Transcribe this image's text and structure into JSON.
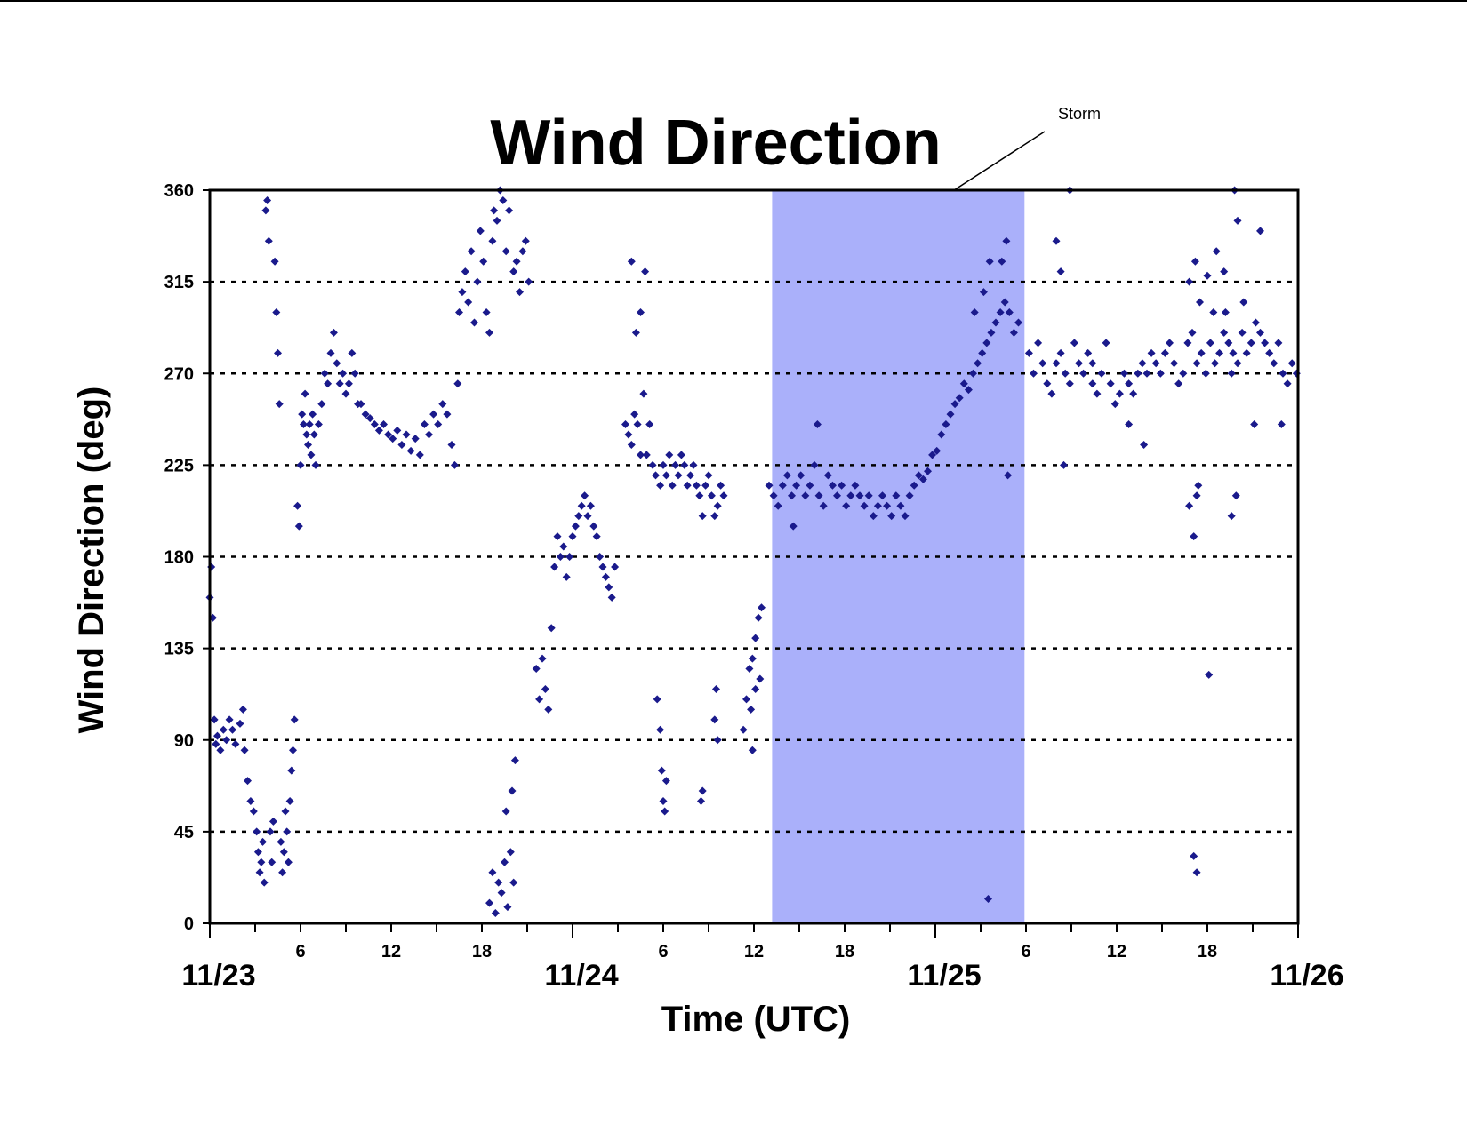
{
  "chart_data": {
    "type": "scatter",
    "title": "Wind Direction",
    "xlabel": "Time (UTC)",
    "ylabel": "Wind Direction (deg)",
    "ylim": [
      0,
      360
    ],
    "y_ticks": [
      0,
      45,
      90,
      135,
      180,
      225,
      270,
      315,
      360
    ],
    "xlim_hours": [
      0,
      72
    ],
    "x_major_ticks": [
      {
        "hour": 0,
        "label": "11/23"
      },
      {
        "hour": 24,
        "label": "11/24"
      },
      {
        "hour": 48,
        "label": "11/25"
      },
      {
        "hour": 72,
        "label": "11/26"
      }
    ],
    "x_minor_ticks": [
      {
        "hour": 6,
        "label": "6"
      },
      {
        "hour": 12,
        "label": "12"
      },
      {
        "hour": 18,
        "label": "18"
      },
      {
        "hour": 30,
        "label": "6"
      },
      {
        "hour": 36,
        "label": "12"
      },
      {
        "hour": 42,
        "label": "18"
      },
      {
        "hour": 54,
        "label": "6"
      },
      {
        "hour": 60,
        "label": "12"
      },
      {
        "hour": 66,
        "label": "18"
      }
    ],
    "grid": "horizontal dotted at each y tick (45–315)",
    "marker": "diamond",
    "color": "#1a1a8c",
    "shaded_region": {
      "x_start_hour": 37.2,
      "x_end_hour": 53.9,
      "color": "#aab0fa",
      "label": "Storm"
    },
    "series_points": [
      [
        0.0,
        160
      ],
      [
        0.1,
        175
      ],
      [
        0.2,
        150
      ],
      [
        0.3,
        100
      ],
      [
        0.4,
        88
      ],
      [
        0.5,
        92
      ],
      [
        0.7,
        85
      ],
      [
        0.9,
        95
      ],
      [
        1.1,
        90
      ],
      [
        1.3,
        100
      ],
      [
        1.5,
        95
      ],
      [
        1.7,
        88
      ],
      [
        2.0,
        98
      ],
      [
        2.2,
        105
      ],
      [
        2.3,
        85
      ],
      [
        2.5,
        70
      ],
      [
        2.7,
        60
      ],
      [
        2.9,
        55
      ],
      [
        3.1,
        45
      ],
      [
        3.2,
        35
      ],
      [
        3.3,
        25
      ],
      [
        3.4,
        30
      ],
      [
        3.5,
        40
      ],
      [
        3.6,
        20
      ],
      [
        3.7,
        350
      ],
      [
        3.8,
        355
      ],
      [
        3.9,
        335
      ],
      [
        4.0,
        45
      ],
      [
        4.1,
        30
      ],
      [
        4.2,
        50
      ],
      [
        4.3,
        325
      ],
      [
        4.4,
        300
      ],
      [
        4.5,
        280
      ],
      [
        4.6,
        255
      ],
      [
        4.7,
        40
      ],
      [
        4.8,
        25
      ],
      [
        4.9,
        35
      ],
      [
        5.0,
        55
      ],
      [
        5.1,
        45
      ],
      [
        5.2,
        30
      ],
      [
        5.3,
        60
      ],
      [
        5.4,
        75
      ],
      [
        5.5,
        85
      ],
      [
        5.6,
        100
      ],
      [
        5.8,
        205
      ],
      [
        5.9,
        195
      ],
      [
        6.0,
        225
      ],
      [
        6.1,
        250
      ],
      [
        6.2,
        245
      ],
      [
        6.3,
        260
      ],
      [
        6.4,
        240
      ],
      [
        6.5,
        235
      ],
      [
        6.6,
        245
      ],
      [
        6.7,
        230
      ],
      [
        6.8,
        250
      ],
      [
        6.9,
        240
      ],
      [
        7.0,
        225
      ],
      [
        7.2,
        245
      ],
      [
        7.4,
        255
      ],
      [
        7.6,
        270
      ],
      [
        7.8,
        265
      ],
      [
        8.0,
        280
      ],
      [
        8.2,
        290
      ],
      [
        8.4,
        275
      ],
      [
        8.6,
        265
      ],
      [
        8.8,
        270
      ],
      [
        9.0,
        260
      ],
      [
        9.2,
        265
      ],
      [
        9.4,
        280
      ],
      [
        9.6,
        270
      ],
      [
        9.8,
        255
      ],
      [
        10.0,
        255
      ],
      [
        10.3,
        250
      ],
      [
        10.6,
        248
      ],
      [
        10.9,
        245
      ],
      [
        11.2,
        242
      ],
      [
        11.5,
        245
      ],
      [
        11.8,
        240
      ],
      [
        12.1,
        238
      ],
      [
        12.4,
        242
      ],
      [
        12.7,
        235
      ],
      [
        13.0,
        240
      ],
      [
        13.3,
        232
      ],
      [
        13.6,
        238
      ],
      [
        13.9,
        230
      ],
      [
        14.2,
        245
      ],
      [
        14.5,
        240
      ],
      [
        14.8,
        250
      ],
      [
        15.1,
        245
      ],
      [
        15.4,
        255
      ],
      [
        15.7,
        250
      ],
      [
        16.0,
        235
      ],
      [
        16.2,
        225
      ],
      [
        16.4,
        265
      ],
      [
        16.5,
        300
      ],
      [
        16.7,
        310
      ],
      [
        16.9,
        320
      ],
      [
        17.1,
        305
      ],
      [
        17.3,
        330
      ],
      [
        17.5,
        295
      ],
      [
        17.7,
        315
      ],
      [
        17.9,
        340
      ],
      [
        18.1,
        325
      ],
      [
        18.3,
        300
      ],
      [
        18.5,
        290
      ],
      [
        18.7,
        335
      ],
      [
        18.8,
        350
      ],
      [
        19.0,
        345
      ],
      [
        19.2,
        360
      ],
      [
        19.4,
        355
      ],
      [
        19.6,
        330
      ],
      [
        19.8,
        350
      ],
      [
        20.1,
        320
      ],
      [
        20.3,
        325
      ],
      [
        20.5,
        310
      ],
      [
        20.7,
        330
      ],
      [
        20.9,
        335
      ],
      [
        21.1,
        315
      ],
      [
        18.5,
        10
      ],
      [
        18.7,
        25
      ],
      [
        18.9,
        5
      ],
      [
        19.1,
        20
      ],
      [
        19.3,
        15
      ],
      [
        19.5,
        30
      ],
      [
        19.7,
        8
      ],
      [
        19.9,
        35
      ],
      [
        20.1,
        20
      ],
      [
        20.0,
        65
      ],
      [
        20.2,
        80
      ],
      [
        19.6,
        55
      ],
      [
        21.6,
        125
      ],
      [
        21.8,
        110
      ],
      [
        22.0,
        130
      ],
      [
        22.2,
        115
      ],
      [
        22.4,
        105
      ],
      [
        22.6,
        145
      ],
      [
        22.8,
        175
      ],
      [
        23.0,
        190
      ],
      [
        23.2,
        180
      ],
      [
        23.4,
        185
      ],
      [
        23.6,
        170
      ],
      [
        23.8,
        180
      ],
      [
        24.0,
        190
      ],
      [
        24.2,
        195
      ],
      [
        24.4,
        200
      ],
      [
        24.6,
        205
      ],
      [
        24.8,
        210
      ],
      [
        25.0,
        200
      ],
      [
        25.2,
        205
      ],
      [
        25.4,
        195
      ],
      [
        25.6,
        190
      ],
      [
        25.8,
        180
      ],
      [
        26.0,
        175
      ],
      [
        26.2,
        170
      ],
      [
        26.4,
        165
      ],
      [
        26.6,
        160
      ],
      [
        26.8,
        175
      ],
      [
        27.5,
        245
      ],
      [
        27.7,
        240
      ],
      [
        27.9,
        235
      ],
      [
        28.1,
        250
      ],
      [
        28.3,
        245
      ],
      [
        28.5,
        230
      ],
      [
        28.7,
        260
      ],
      [
        28.9,
        230
      ],
      [
        29.1,
        245
      ],
      [
        29.3,
        225
      ],
      [
        29.5,
        220
      ],
      [
        28.2,
        290
      ],
      [
        28.5,
        300
      ],
      [
        28.8,
        320
      ],
      [
        27.9,
        325
      ],
      [
        29.8,
        215
      ],
      [
        30.0,
        225
      ],
      [
        30.2,
        220
      ],
      [
        30.4,
        230
      ],
      [
        30.6,
        215
      ],
      [
        30.8,
        225
      ],
      [
        31.0,
        220
      ],
      [
        31.2,
        230
      ],
      [
        31.4,
        225
      ],
      [
        31.6,
        215
      ],
      [
        31.8,
        220
      ],
      [
        32.0,
        225
      ],
      [
        32.2,
        215
      ],
      [
        32.4,
        210
      ],
      [
        32.6,
        200
      ],
      [
        32.8,
        215
      ],
      [
        33.0,
        220
      ],
      [
        33.2,
        210
      ],
      [
        33.4,
        200
      ],
      [
        33.6,
        205
      ],
      [
        33.8,
        215
      ],
      [
        34.0,
        210
      ],
      [
        29.6,
        110
      ],
      [
        29.8,
        95
      ],
      [
        30.0,
        60
      ],
      [
        30.2,
        70
      ],
      [
        30.1,
        55
      ],
      [
        29.9,
        75
      ],
      [
        32.5,
        60
      ],
      [
        32.6,
        65
      ],
      [
        33.4,
        100
      ],
      [
        33.5,
        115
      ],
      [
        33.6,
        90
      ],
      [
        35.3,
        95
      ],
      [
        35.5,
        110
      ],
      [
        35.7,
        125
      ],
      [
        35.9,
        130
      ],
      [
        36.1,
        140
      ],
      [
        36.3,
        150
      ],
      [
        36.5,
        155
      ],
      [
        36.1,
        115
      ],
      [
        35.8,
        105
      ],
      [
        36.4,
        120
      ],
      [
        35.9,
        85
      ],
      [
        37.0,
        215
      ],
      [
        37.3,
        210
      ],
      [
        37.6,
        205
      ],
      [
        37.9,
        215
      ],
      [
        38.2,
        220
      ],
      [
        38.5,
        210
      ],
      [
        38.8,
        215
      ],
      [
        39.1,
        220
      ],
      [
        39.4,
        210
      ],
      [
        39.7,
        215
      ],
      [
        40.0,
        225
      ],
      [
        40.3,
        210
      ],
      [
        40.6,
        205
      ],
      [
        40.9,
        220
      ],
      [
        41.2,
        215
      ],
      [
        41.5,
        210
      ],
      [
        41.8,
        215
      ],
      [
        42.1,
        205
      ],
      [
        42.4,
        210
      ],
      [
        42.7,
        215
      ],
      [
        43.0,
        210
      ],
      [
        43.3,
        205
      ],
      [
        43.6,
        210
      ],
      [
        43.9,
        200
      ],
      [
        44.2,
        205
      ],
      [
        44.5,
        210
      ],
      [
        44.8,
        205
      ],
      [
        45.1,
        200
      ],
      [
        45.4,
        210
      ],
      [
        45.7,
        205
      ],
      [
        46.0,
        200
      ],
      [
        46.3,
        210
      ],
      [
        46.6,
        215
      ],
      [
        46.9,
        220
      ],
      [
        47.2,
        218
      ],
      [
        47.5,
        222
      ],
      [
        47.8,
        230
      ],
      [
        48.1,
        232
      ],
      [
        48.4,
        240
      ],
      [
        48.7,
        245
      ],
      [
        49.0,
        250
      ],
      [
        49.3,
        255
      ],
      [
        49.6,
        258
      ],
      [
        49.9,
        265
      ],
      [
        50.2,
        262
      ],
      [
        50.5,
        270
      ],
      [
        50.8,
        275
      ],
      [
        51.1,
        280
      ],
      [
        51.4,
        285
      ],
      [
        51.7,
        290
      ],
      [
        52.0,
        295
      ],
      [
        52.3,
        300
      ],
      [
        52.6,
        305
      ],
      [
        52.9,
        300
      ],
      [
        53.2,
        290
      ],
      [
        53.5,
        295
      ],
      [
        50.6,
        300
      ],
      [
        51.2,
        310
      ],
      [
        51.6,
        325
      ],
      [
        52.4,
        325
      ],
      [
        52.7,
        335
      ],
      [
        40.2,
        245
      ],
      [
        38.6,
        195
      ],
      [
        52.8,
        220
      ],
      [
        51.5,
        12
      ],
      [
        54.2,
        280
      ],
      [
        54.5,
        270
      ],
      [
        54.8,
        285
      ],
      [
        55.1,
        275
      ],
      [
        55.4,
        265
      ],
      [
        55.7,
        260
      ],
      [
        56.0,
        275
      ],
      [
        56.3,
        280
      ],
      [
        56.6,
        270
      ],
      [
        56.9,
        265
      ],
      [
        57.2,
        285
      ],
      [
        57.5,
        275
      ],
      [
        57.8,
        270
      ],
      [
        58.1,
        280
      ],
      [
        58.4,
        265
      ],
      [
        58.7,
        260
      ],
      [
        59.0,
        270
      ],
      [
        59.3,
        285
      ],
      [
        59.6,
        265
      ],
      [
        59.9,
        255
      ],
      [
        60.2,
        260
      ],
      [
        60.5,
        270
      ],
      [
        60.8,
        265
      ],
      [
        61.1,
        260
      ],
      [
        61.4,
        270
      ],
      [
        61.7,
        275
      ],
      [
        62.0,
        270
      ],
      [
        62.3,
        280
      ],
      [
        62.6,
        275
      ],
      [
        62.9,
        270
      ],
      [
        63.2,
        280
      ],
      [
        63.5,
        285
      ],
      [
        63.8,
        275
      ],
      [
        64.1,
        265
      ],
      [
        64.4,
        270
      ],
      [
        64.7,
        285
      ],
      [
        65.0,
        290
      ],
      [
        65.3,
        275
      ],
      [
        65.6,
        280
      ],
      [
        65.9,
        270
      ],
      [
        66.2,
        285
      ],
      [
        66.5,
        275
      ],
      [
        66.8,
        280
      ],
      [
        67.1,
        290
      ],
      [
        67.4,
        285
      ],
      [
        67.7,
        280
      ],
      [
        68.0,
        275
      ],
      [
        68.3,
        290
      ],
      [
        68.6,
        280
      ],
      [
        68.9,
        285
      ],
      [
        69.2,
        295
      ],
      [
        69.5,
        290
      ],
      [
        69.8,
        285
      ],
      [
        70.1,
        280
      ],
      [
        70.4,
        275
      ],
      [
        70.7,
        285
      ],
      [
        71.0,
        270
      ],
      [
        71.3,
        265
      ],
      [
        71.6,
        275
      ],
      [
        71.9,
        270
      ],
      [
        56.0,
        335
      ],
      [
        56.3,
        320
      ],
      [
        56.5,
        225
      ],
      [
        56.9,
        360
      ],
      [
        64.8,
        315
      ],
      [
        65.2,
        325
      ],
      [
        65.5,
        305
      ],
      [
        66.0,
        318
      ],
      [
        66.4,
        300
      ],
      [
        66.6,
        330
      ],
      [
        67.1,
        320
      ],
      [
        67.2,
        300
      ],
      [
        67.6,
        270
      ],
      [
        67.8,
        360
      ],
      [
        68.0,
        345
      ],
      [
        68.4,
        305
      ],
      [
        69.5,
        340
      ],
      [
        64.8,
        205
      ],
      [
        65.1,
        190
      ],
      [
        65.4,
        215
      ],
      [
        65.3,
        210
      ],
      [
        67.6,
        200
      ],
      [
        67.9,
        210
      ],
      [
        66.1,
        122
      ],
      [
        65.1,
        33
      ],
      [
        65.3,
        25
      ],
      [
        58.4,
        275
      ],
      [
        60.8,
        245
      ],
      [
        61.8,
        235
      ],
      [
        69.1,
        245
      ],
      [
        70.9,
        245
      ]
    ]
  }
}
